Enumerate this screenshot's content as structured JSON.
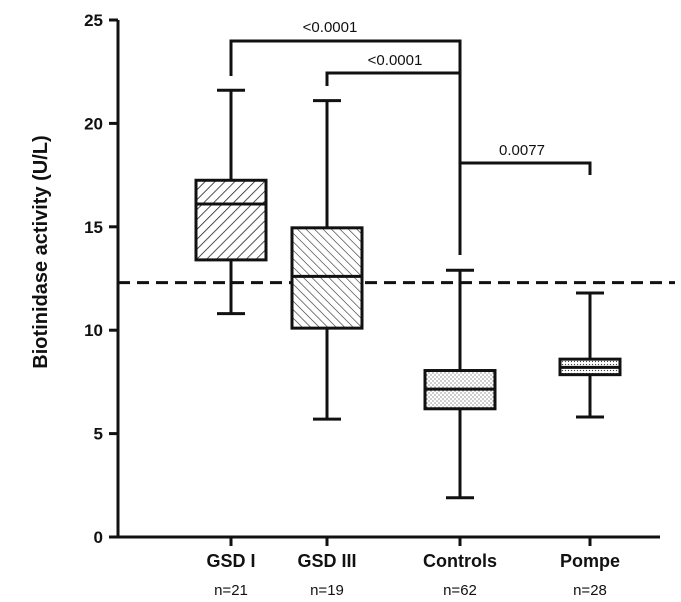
{
  "chart_data": {
    "type": "box",
    "ylabel": "Biotinidase activity (U/L)",
    "ylim": [
      0,
      25
    ],
    "yticks": [
      0,
      5,
      10,
      15,
      20,
      25
    ],
    "grid": false,
    "reference_line": {
      "y": 12.3,
      "style": "dashed"
    },
    "groups": [
      {
        "label": "GSD I",
        "n_label": "n=21",
        "min": 10.8,
        "q1": 13.4,
        "median": 16.1,
        "q3": 17.25,
        "max": 21.6,
        "fill": "hatch-forward"
      },
      {
        "label": "GSD III",
        "n_label": "n=19",
        "min": 5.7,
        "q1": 10.1,
        "median": 12.6,
        "q3": 14.95,
        "max": 21.1,
        "fill": "hatch-back"
      },
      {
        "label": "Controls",
        "n_label": "n=62",
        "min": 1.9,
        "q1": 6.2,
        "median": 7.15,
        "q3": 8.05,
        "max": 12.9,
        "fill": "dots"
      },
      {
        "label": "Pompe",
        "n_label": "n=28",
        "min": 5.8,
        "q1": 7.85,
        "median": 8.2,
        "q3": 8.6,
        "max": 11.8,
        "fill": "dense-dots"
      }
    ],
    "comparisons": [
      {
        "from": "GSD I",
        "to": "Controls",
        "p_label": "<0.0001"
      },
      {
        "from": "GSD III",
        "to": "Controls",
        "p_label": "<0.0001"
      },
      {
        "from": "Controls",
        "to": "Pompe",
        "p_label": "0.0077"
      }
    ],
    "colors": {
      "line": "#111111",
      "fill": "#ffffff"
    }
  }
}
